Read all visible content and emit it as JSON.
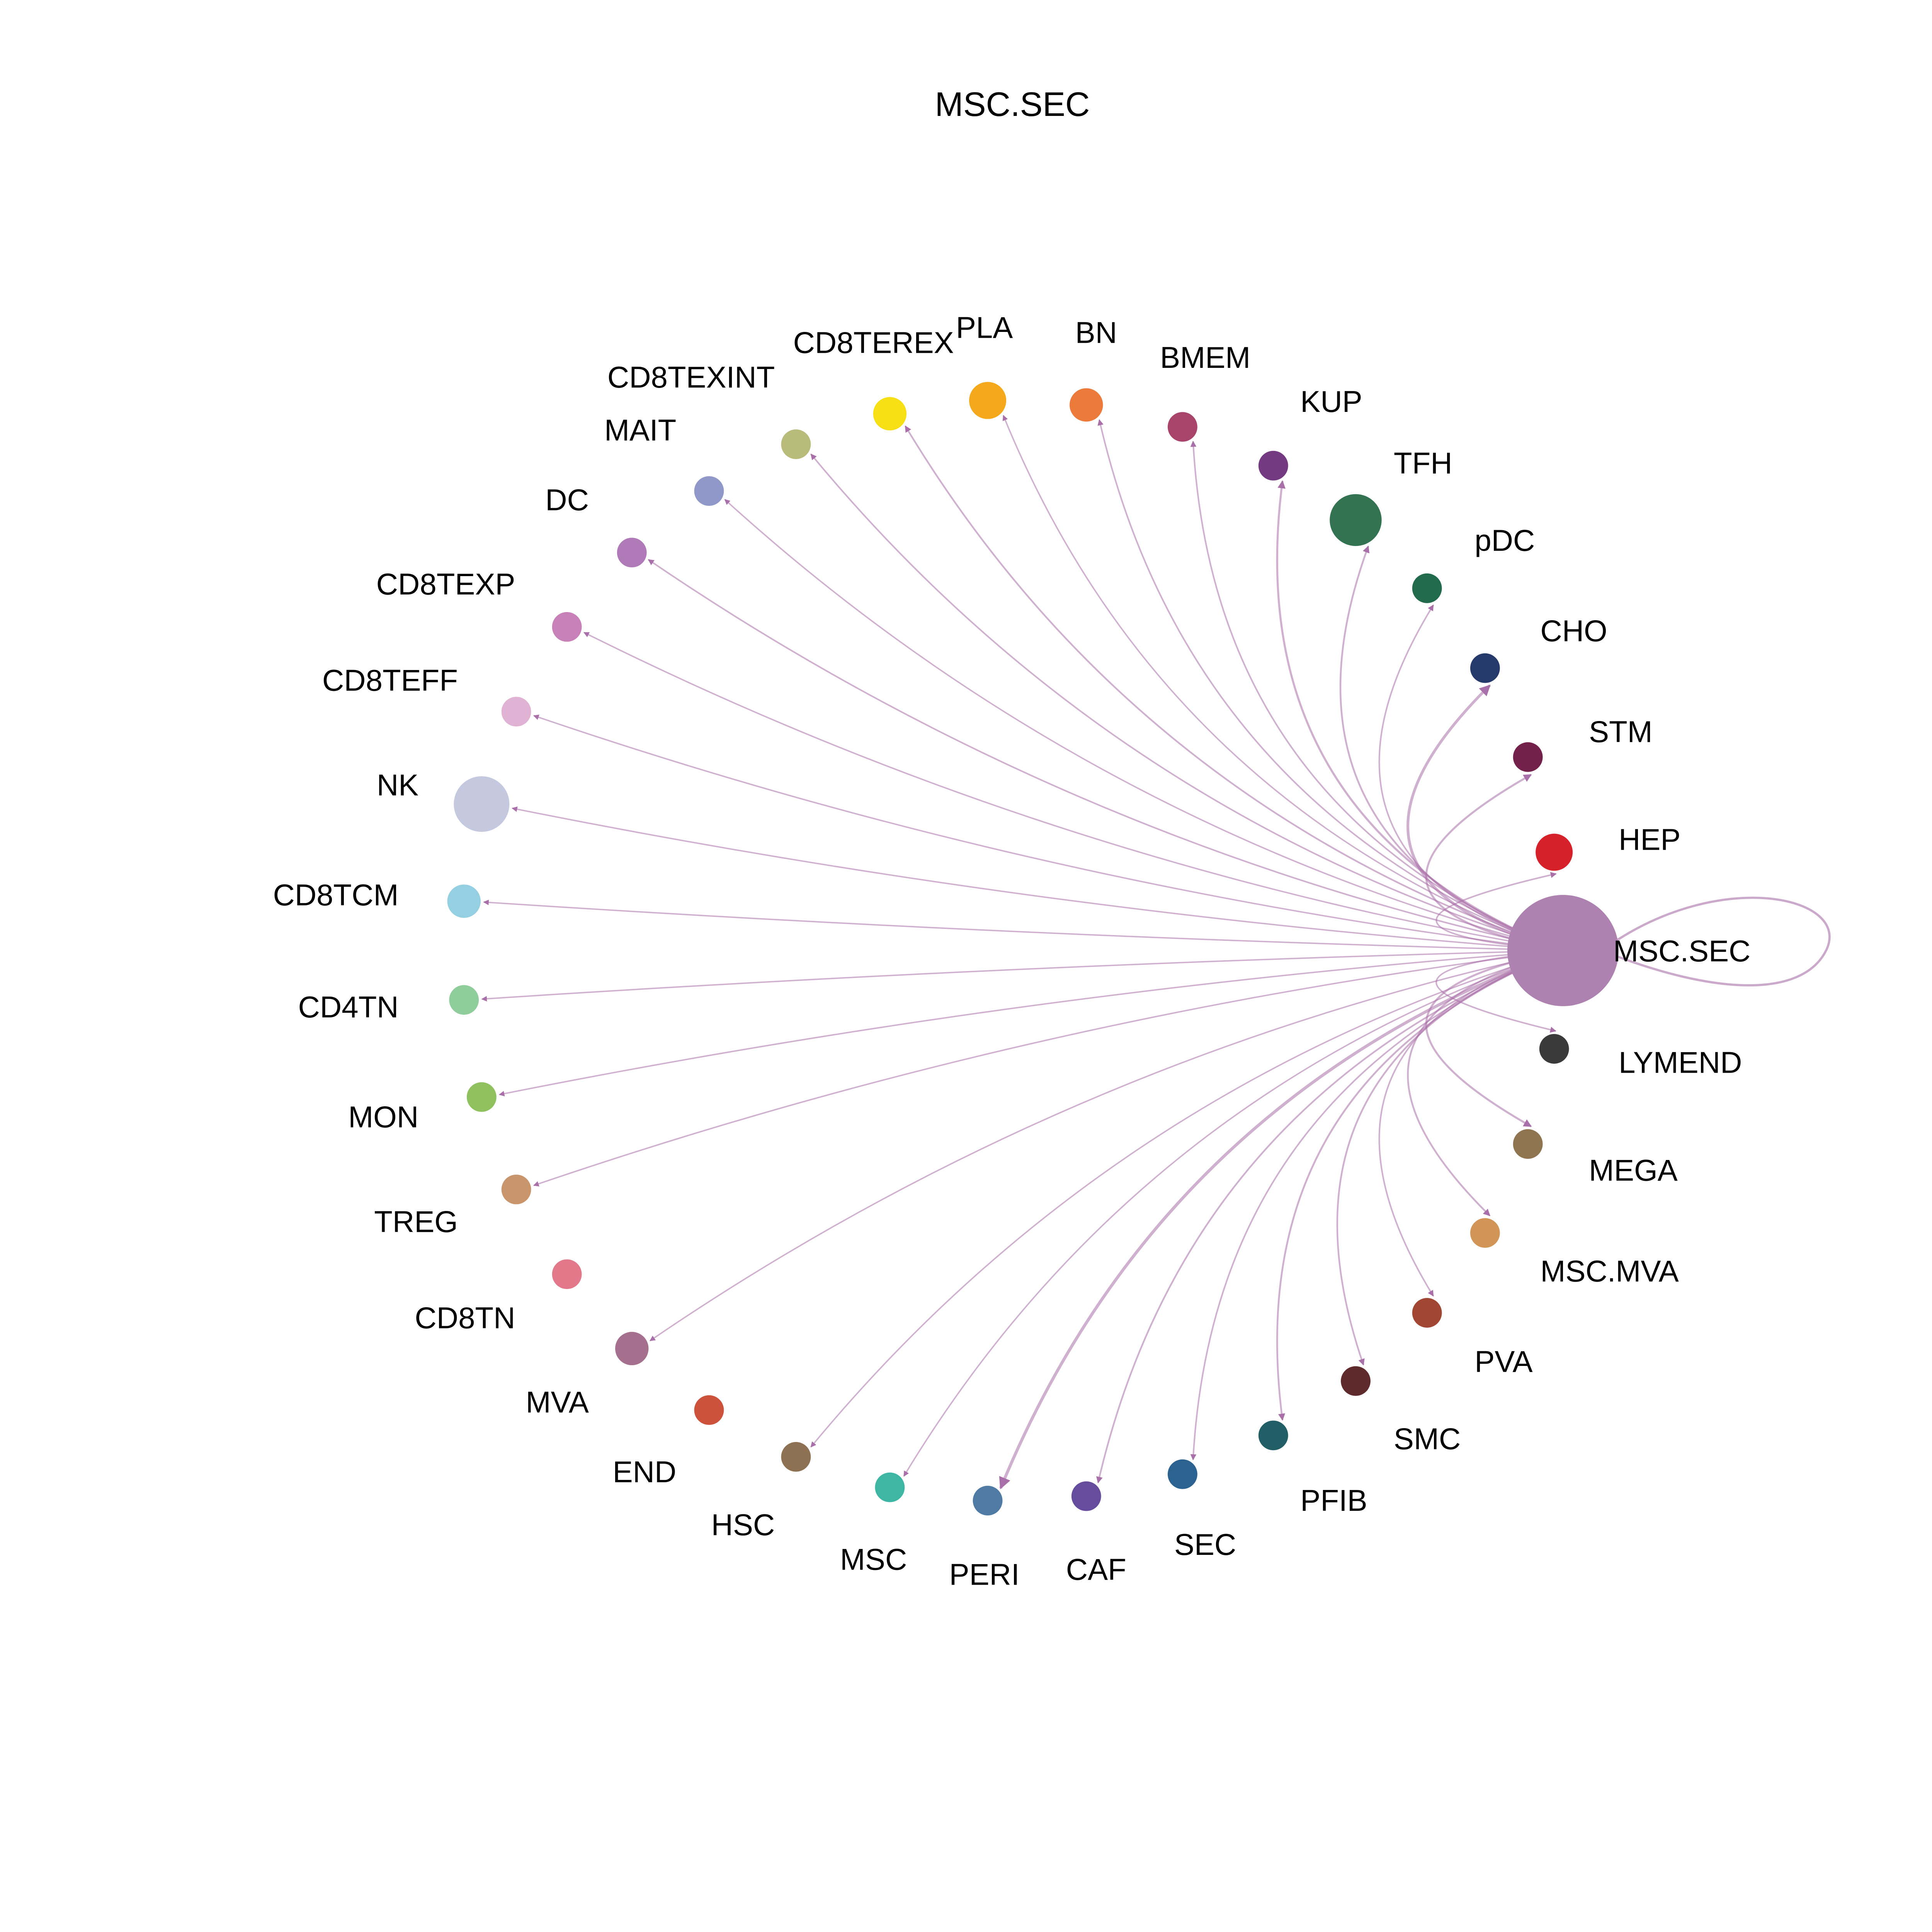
{
  "title": "MSC.SEC",
  "source": "MSC.SEC",
  "edge_color": "#a96fa8",
  "nodes": [
    {
      "id": "HEP",
      "label": "HEP",
      "color": "#d7212a",
      "weight": 1.0,
      "edge": 0.6
    },
    {
      "id": "STM",
      "label": "STM",
      "color": "#73214a",
      "weight": 0.8,
      "edge": 1.0
    },
    {
      "id": "CHO",
      "label": "CHO",
      "color": "#253a6a",
      "weight": 0.8,
      "edge": 1.6
    },
    {
      "id": "pDC",
      "label": "pDC",
      "color": "#216a4c",
      "weight": 0.8,
      "edge": 0.6
    },
    {
      "id": "TFH",
      "label": "TFH",
      "color": "#347352",
      "weight": 1.4,
      "edge": 0.8
    },
    {
      "id": "KUP",
      "label": "KUP",
      "color": "#733a82",
      "weight": 0.8,
      "edge": 1.0
    },
    {
      "id": "BMEM",
      "label": "BMEM",
      "color": "#a8446a",
      "weight": 0.8,
      "edge": 0.6
    },
    {
      "id": "BN",
      "label": "BN",
      "color": "#ec7a3b",
      "weight": 0.9,
      "edge": 0.6
    },
    {
      "id": "PLA",
      "label": "PLA",
      "color": "#f5a81c",
      "weight": 1.0,
      "edge": 0.5
    },
    {
      "id": "CD8TEREX",
      "label": "CD8TEREX",
      "color": "#f6e015",
      "weight": 0.9,
      "edge": 0.7
    },
    {
      "id": "CD8TEXINT",
      "label": "CD8TEXINT",
      "color": "#b8bb7a",
      "weight": 0.8,
      "edge": 0.6
    },
    {
      "id": "MAIT",
      "label": "MAIT",
      "color": "#9097c9",
      "weight": 0.8,
      "edge": 0.5
    },
    {
      "id": "DC",
      "label": "DC",
      "color": "#b07ab8",
      "weight": 0.8,
      "edge": 0.6
    },
    {
      "id": "CD8TEXP",
      "label": "CD8TEXP",
      "color": "#c880b8",
      "weight": 0.8,
      "edge": 0.5
    },
    {
      "id": "CD8TEFF",
      "label": "CD8TEFF",
      "color": "#e0b2d4",
      "weight": 0.8,
      "edge": 0.5
    },
    {
      "id": "NK",
      "label": "NK",
      "color": "#c4c9e0",
      "weight": 1.5,
      "edge": 0.5
    },
    {
      "id": "CD8TCM",
      "label": "CD8TCM",
      "color": "#94d0e2",
      "weight": 0.9,
      "edge": 0.5
    },
    {
      "id": "CD4TN",
      "label": "CD4TN",
      "color": "#8fcd9d",
      "weight": 0.8,
      "edge": 0.5
    },
    {
      "id": "MON",
      "label": "MON",
      "color": "#8fc15f",
      "weight": 0.8,
      "edge": 0.5
    },
    {
      "id": "TREG",
      "label": "TREG",
      "color": "#c8956c",
      "weight": 0.8,
      "edge": 0.5
    },
    {
      "id": "CD8TN",
      "label": "CD8TN",
      "color": "#e2788a",
      "weight": 0.8,
      "edge": 0
    },
    {
      "id": "MVA",
      "label": "MVA",
      "color": "#a4708e",
      "weight": 0.9,
      "edge": 0.5
    },
    {
      "id": "END",
      "label": "END",
      "color": "#cc523c",
      "weight": 0.8,
      "edge": 0
    },
    {
      "id": "HSC",
      "label": "HSC",
      "color": "#8e7053",
      "weight": 0.8,
      "edge": 0.5
    },
    {
      "id": "MSC",
      "label": "MSC",
      "color": "#3db7a3",
      "weight": 0.8,
      "edge": 0.5
    },
    {
      "id": "PERI",
      "label": "PERI",
      "color": "#4f7aa4",
      "weight": 0.8,
      "edge": 1.8
    },
    {
      "id": "CAF",
      "label": "CAF",
      "color": "#654c9c",
      "weight": 0.8,
      "edge": 0.7
    },
    {
      "id": "SEC",
      "label": "SEC",
      "color": "#2c6290",
      "weight": 0.8,
      "edge": 0.6
    },
    {
      "id": "PFIB",
      "label": "PFIB",
      "color": "#215e66",
      "weight": 0.8,
      "edge": 0.8
    },
    {
      "id": "SMC",
      "label": "SMC",
      "color": "#5e2a2c",
      "weight": 0.8,
      "edge": 0.7
    },
    {
      "id": "PVA",
      "label": "PVA",
      "color": "#a04632",
      "weight": 0.8,
      "edge": 0.6
    },
    {
      "id": "MSC.MVA",
      "label": "MSC.MVA",
      "color": "#d19657",
      "weight": 0.8,
      "edge": 0.8
    },
    {
      "id": "MEGA",
      "label": "MEGA",
      "color": "#8e7550",
      "weight": 0.8,
      "edge": 1.0
    },
    {
      "id": "LYMEND",
      "label": "LYMEND",
      "color": "#3a3a3a",
      "weight": 0.8,
      "edge": 0.6
    },
    {
      "id": "MSC.SEC",
      "label": "MSC.SEC",
      "color": "#ae82b0",
      "weight": 3.0,
      "edge": 1.2,
      "self": true
    }
  ]
}
